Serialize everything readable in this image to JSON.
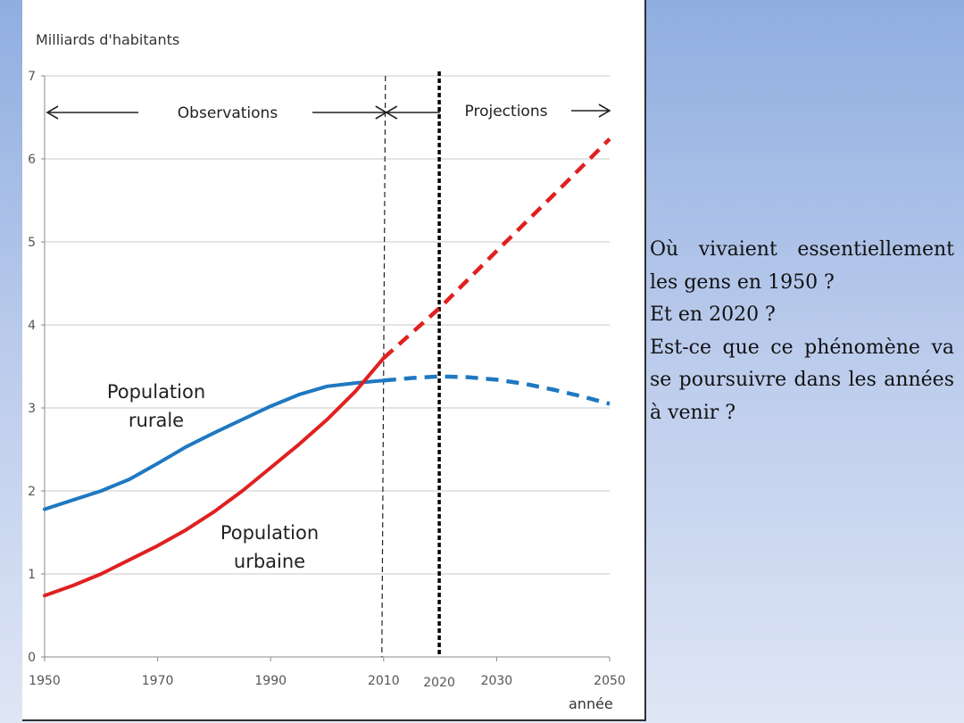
{
  "chart_data": {
    "type": "line",
    "ylabel": "Milliards d'habitants",
    "xlabel": "année",
    "ylim": [
      0,
      7
    ],
    "xlim": [
      1950,
      2050
    ],
    "y_ticks": [
      "0",
      "1",
      "2",
      "3",
      "4",
      "5",
      "6",
      "7"
    ],
    "x_ticks": [
      {
        "value": 1950,
        "label": "1950"
      },
      {
        "value": 1970,
        "label": "1970"
      },
      {
        "value": 1990,
        "label": "1990"
      },
      {
        "value": 2010,
        "label": "2010"
      },
      {
        "value": 2030,
        "label": "2030"
      },
      {
        "value": 2050,
        "label": "2050"
      }
    ],
    "grid": true,
    "annotations": {
      "observations": "Observations",
      "projections": "Projections",
      "marker_2020": "2020"
    },
    "reference_lines": [
      {
        "x": 2010,
        "style": "dashed-thin"
      },
      {
        "x": 2020,
        "style": "dashed-bold"
      }
    ],
    "series": [
      {
        "name": "Population rurale",
        "label_lines": [
          "Population",
          "rurale"
        ],
        "color": "#1f78c1",
        "observed": [
          [
            1950,
            1.78
          ],
          [
            1955,
            1.89
          ],
          [
            1960,
            2.0
          ],
          [
            1965,
            2.14
          ],
          [
            1970,
            2.33
          ],
          [
            1975,
            2.53
          ],
          [
            1980,
            2.7
          ],
          [
            1985,
            2.86
          ],
          [
            1990,
            3.02
          ],
          [
            1995,
            3.16
          ],
          [
            2000,
            3.26
          ],
          [
            2005,
            3.3
          ],
          [
            2010,
            3.33
          ]
        ],
        "projected": [
          [
            2010,
            3.33
          ],
          [
            2015,
            3.36
          ],
          [
            2020,
            3.38
          ],
          [
            2025,
            3.37
          ],
          [
            2030,
            3.34
          ],
          [
            2035,
            3.29
          ],
          [
            2040,
            3.22
          ],
          [
            2045,
            3.14
          ],
          [
            2050,
            3.05
          ]
        ]
      },
      {
        "name": "Population urbaine",
        "label_lines": [
          "Population",
          "urbaine"
        ],
        "color": "#e02020",
        "observed": [
          [
            1950,
            0.74
          ],
          [
            1955,
            0.86
          ],
          [
            1960,
            1.0
          ],
          [
            1965,
            1.17
          ],
          [
            1970,
            1.34
          ],
          [
            1975,
            1.53
          ],
          [
            1980,
            1.75
          ],
          [
            1985,
            2.0
          ],
          [
            1990,
            2.28
          ],
          [
            1995,
            2.56
          ],
          [
            2000,
            2.86
          ],
          [
            2005,
            3.2
          ],
          [
            2010,
            3.6
          ]
        ],
        "projected": [
          [
            2010,
            3.6
          ],
          [
            2020,
            4.21
          ],
          [
            2030,
            4.89
          ],
          [
            2040,
            5.56
          ],
          [
            2050,
            6.24
          ]
        ]
      }
    ]
  },
  "question": {
    "lines": [
      "Où vivaient essentiellement les gens en 1950 ?",
      "Et en 2020 ?",
      "Est-ce que ce phénomène va se poursuivre dans les années à venir ?"
    ]
  }
}
